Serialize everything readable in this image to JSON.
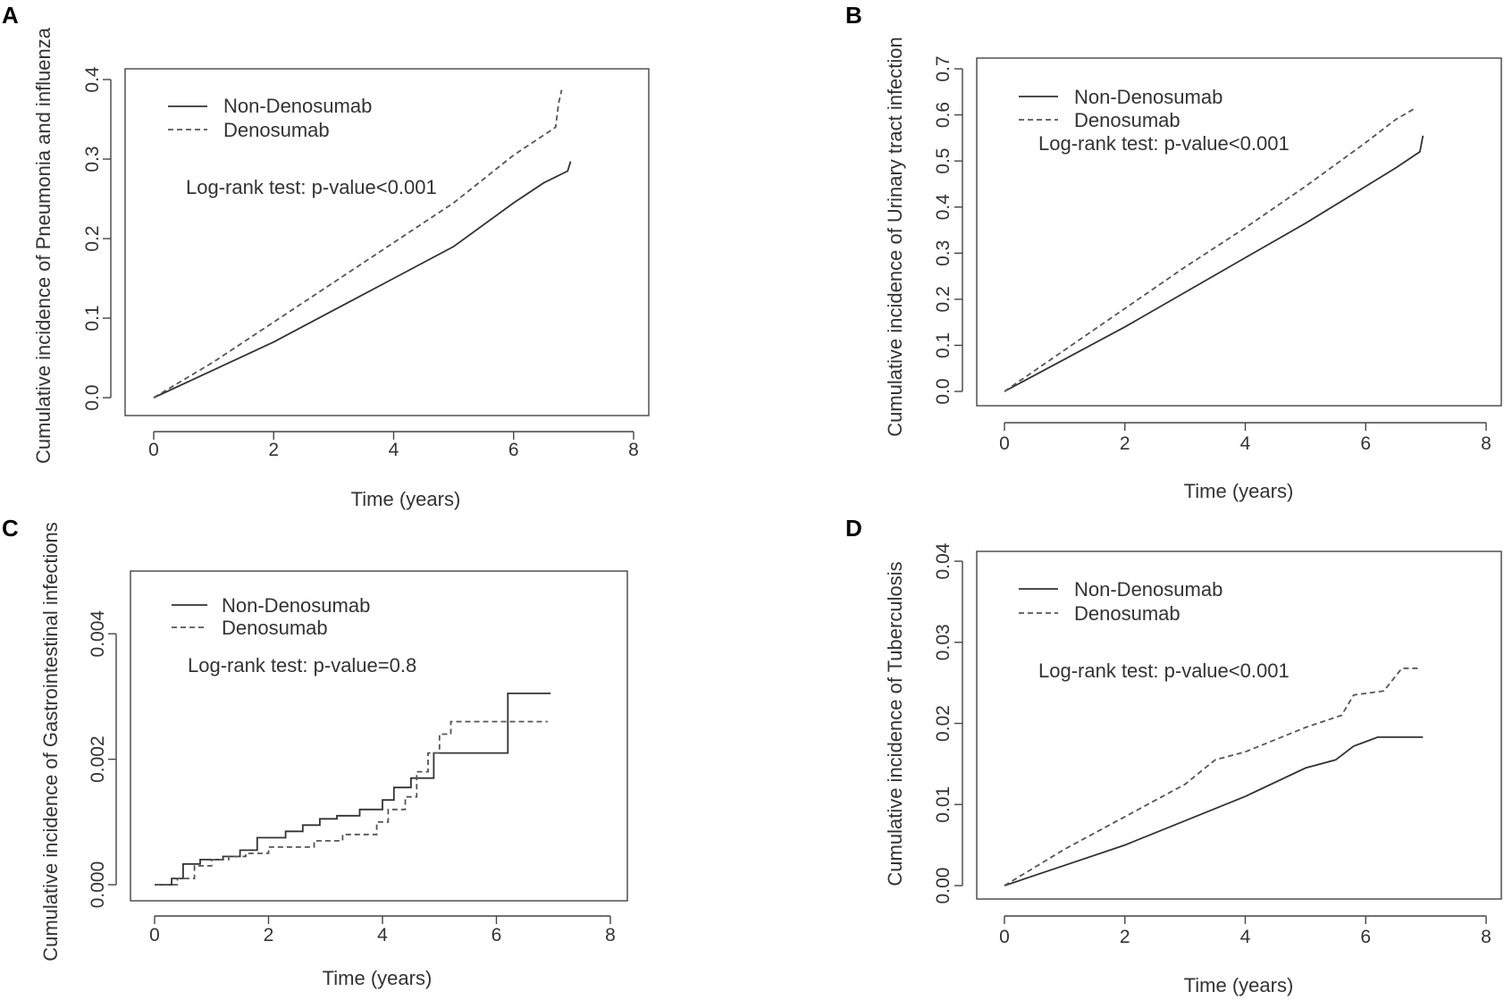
{
  "chart_data": [
    {
      "panel": "A",
      "type": "line",
      "title": "",
      "xlabel": "Time (years)",
      "ylabel": "Cumulative incidence of Pneumonia and influenza",
      "xlim": [
        0,
        8
      ],
      "ylim": [
        0,
        0.4
      ],
      "xticks": [
        "0",
        "2",
        "4",
        "6",
        "8"
      ],
      "yticks": [
        "0.0",
        "0.1",
        "0.2",
        "0.3",
        "0.4"
      ],
      "legend": [
        "Non-Denosumab",
        "Denosumab"
      ],
      "annotation": "Log-rank test: p-value<0.001",
      "series": [
        {
          "name": "Non-Denosumab",
          "style": "solid",
          "x": [
            0,
            1,
            2,
            3,
            4,
            5,
            6,
            6.5,
            6.9,
            6.95
          ],
          "y": [
            0,
            0.035,
            0.07,
            0.11,
            0.15,
            0.19,
            0.245,
            0.27,
            0.285,
            0.297
          ]
        },
        {
          "name": "Denosumab",
          "style": "dashed",
          "x": [
            0,
            1,
            2,
            3,
            4,
            5,
            6,
            6.5,
            6.7,
            6.75,
            6.8
          ],
          "y": [
            0,
            0.045,
            0.095,
            0.145,
            0.195,
            0.245,
            0.305,
            0.33,
            0.34,
            0.37,
            0.387
          ]
        }
      ]
    },
    {
      "panel": "B",
      "type": "line",
      "title": "",
      "xlabel": "Time (years)",
      "ylabel": "Cumulative incidence of Urinary tract infection",
      "xlim": [
        0,
        8
      ],
      "ylim": [
        0,
        0.7
      ],
      "xticks": [
        "0",
        "2",
        "4",
        "6",
        "8"
      ],
      "yticks": [
        "0.0",
        "0.1",
        "0.2",
        "0.3",
        "0.4",
        "0.5",
        "0.6",
        "0.7"
      ],
      "legend": [
        "Non-Denosumab",
        "Denosumab"
      ],
      "annotation": "Log-rank test: p-value<0.001",
      "series": [
        {
          "name": "Non-Denosumab",
          "style": "solid",
          "x": [
            0,
            1,
            2,
            3,
            4,
            5,
            6,
            6.5,
            6.9,
            6.95
          ],
          "y": [
            0,
            0.07,
            0.14,
            0.215,
            0.29,
            0.365,
            0.445,
            0.485,
            0.52,
            0.555
          ]
        },
        {
          "name": "Denosumab",
          "style": "dashed",
          "x": [
            0,
            1,
            2,
            3,
            4,
            5,
            6,
            6.5,
            6.8
          ],
          "y": [
            0,
            0.09,
            0.18,
            0.27,
            0.355,
            0.445,
            0.54,
            0.59,
            0.613
          ]
        }
      ]
    },
    {
      "panel": "C",
      "type": "line",
      "title": "",
      "xlabel": "Time (years)",
      "ylabel": "Cumulative incidence of Gastrointestinal infections",
      "xlim": [
        0,
        8
      ],
      "ylim": [
        0,
        0.005
      ],
      "xticks": [
        "0",
        "2",
        "4",
        "6",
        "8"
      ],
      "yticks": [
        "0.000",
        "0.002",
        "0.004"
      ],
      "legend": [
        "Non-Denosumab",
        "Denosumab"
      ],
      "annotation": "Log-rank test: p-value=0.8",
      "series": [
        {
          "name": "Non-Denosumab",
          "style": "solid",
          "x": [
            0,
            0.3,
            0.5,
            0.8,
            1.2,
            1.5,
            1.8,
            2.3,
            2.6,
            2.9,
            3.2,
            3.6,
            4.0,
            4.2,
            4.5,
            4.9,
            6.2,
            6.95
          ],
          "y": [
            0,
            0.0001,
            0.00033,
            0.0004,
            0.00045,
            0.00055,
            0.00075,
            0.00085,
            0.00095,
            0.00105,
            0.0011,
            0.0012,
            0.00135,
            0.00155,
            0.0017,
            0.0021,
            0.00305,
            0.00305
          ]
        },
        {
          "name": "Denosumab",
          "style": "dashed",
          "x": [
            0,
            0.4,
            0.7,
            1.0,
            1.3,
            1.6,
            2.0,
            2.8,
            3.3,
            3.9,
            4.1,
            4.4,
            4.6,
            4.8,
            5.0,
            5.2,
            6.9
          ],
          "y": [
            0,
            0.0001,
            0.0003,
            0.0004,
            0.00045,
            0.0005,
            0.0006,
            0.0007,
            0.0008,
            0.001,
            0.0012,
            0.0014,
            0.0018,
            0.0021,
            0.0024,
            0.0026,
            0.0026
          ]
        }
      ]
    },
    {
      "panel": "D",
      "type": "line",
      "title": "",
      "xlabel": "Time (years)",
      "ylabel": "Cumulative incidence of Tuberculosis",
      "xlim": [
        0,
        8
      ],
      "ylim": [
        0,
        0.04
      ],
      "xticks": [
        "0",
        "2",
        "4",
        "6",
        "8"
      ],
      "yticks": [
        "0.00",
        "0.01",
        "0.02",
        "0.03",
        "0.04"
      ],
      "legend": [
        "Non-Denosumab",
        "Denosumab"
      ],
      "annotation": "Log-rank test: p-value<0.001",
      "series": [
        {
          "name": "Non-Denosumab",
          "style": "solid",
          "x": [
            0,
            1,
            2,
            3,
            4,
            5,
            5.5,
            5.8,
            6.2,
            6.95
          ],
          "y": [
            0,
            0.0025,
            0.005,
            0.008,
            0.011,
            0.0145,
            0.0155,
            0.0172,
            0.0183,
            0.0183
          ]
        },
        {
          "name": "Denosumab",
          "style": "dashed",
          "x": [
            0,
            1,
            2,
            3,
            3.5,
            4,
            5,
            5.6,
            5.8,
            6.3,
            6.6,
            6.9
          ],
          "y": [
            0,
            0.0045,
            0.0085,
            0.0125,
            0.0155,
            0.0165,
            0.0195,
            0.021,
            0.0235,
            0.024,
            0.0268,
            0.0268
          ]
        }
      ]
    }
  ]
}
